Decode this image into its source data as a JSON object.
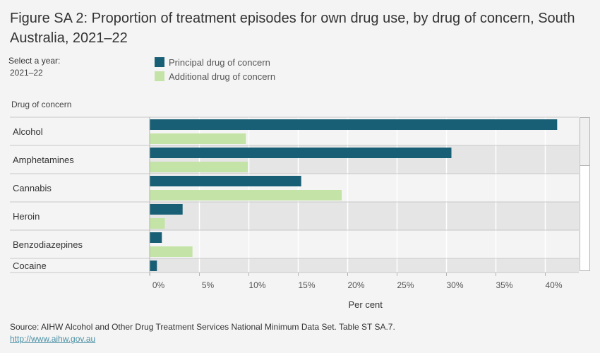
{
  "title": "Figure SA 2: Proportion of treatment episodes for own drug use, by drug of concern, South Australia, 2021–22",
  "filter": {
    "label": "Select a year:",
    "value": "2021–22"
  },
  "source": "Source: AIHW Alcohol and Other Drug Treatment Services National Minimum Data Set. Table ST SA.7.",
  "link": "http://www.aihw.gov.au",
  "colors": {
    "principal": "#185e74",
    "additional": "#c4e3a6",
    "row_alt": "#e5e5e5",
    "row": "#f4f4f4"
  },
  "chart_data": {
    "type": "bar",
    "orientation": "horizontal",
    "title": "Figure SA 2: Proportion of treatment episodes for own drug use, by drug of concern, South Australia, 2021–22",
    "ylabel": "Drug of concern",
    "xlabel": "Per cent",
    "categories": [
      "Alcohol",
      "Amphetamines",
      "Cannabis",
      "Heroin",
      "Benzodiazepines",
      "Cocaine"
    ],
    "series": [
      {
        "name": "Principal drug of concern",
        "values": [
          41.2,
          30.5,
          15.3,
          3.3,
          1.2,
          0.7
        ]
      },
      {
        "name": "Additional drug of concern",
        "values": [
          9.7,
          9.9,
          19.4,
          1.5,
          4.3,
          null
        ]
      }
    ],
    "xlim": [
      0,
      43.5
    ],
    "xticks": [
      0,
      5,
      10,
      15,
      20,
      25,
      30,
      35,
      40
    ],
    "xtick_labels": [
      "0%",
      "5%",
      "10%",
      "15%",
      "20%",
      "25%",
      "30%",
      "35%",
      "40%"
    ],
    "grid": true,
    "legend": "top-left"
  }
}
